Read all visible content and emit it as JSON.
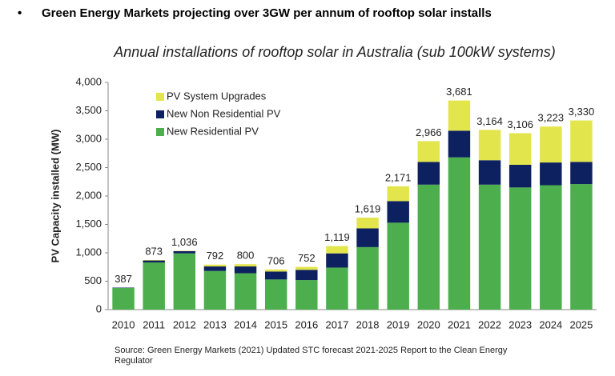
{
  "heading": "Green Energy Markets projecting over 3GW per annum of rooftop solar installs",
  "source": "Source: Green Energy Markets (2021)  Updated STC forecast 2021-2025 Report to the Clean Energy Regulator",
  "chart_data": {
    "type": "stacked_bar",
    "title": "Annual installations of rooftop solar in Australia (sub 100kW systems)",
    "y_label": "PV Capacity installed (MW)",
    "categories": [
      "2010",
      "2011",
      "2012",
      "2013",
      "2014",
      "2015",
      "2016",
      "2017",
      "2018",
      "2019",
      "2020",
      "2021",
      "2022",
      "2023",
      "2024",
      "2025"
    ],
    "series": [
      {
        "name": "New Residential PV",
        "color": "#4cae4c",
        "values": [
          380,
          830,
          990,
          680,
          640,
          530,
          520,
          740,
          1100,
          1530,
          2200,
          2680,
          2200,
          2150,
          2190,
          2210
        ]
      },
      {
        "name": "New Non Residential PV",
        "color": "#0d2160",
        "values": [
          7,
          35,
          40,
          80,
          120,
          140,
          180,
          250,
          330,
          380,
          400,
          470,
          430,
          400,
          400,
          390
        ]
      },
      {
        "name": "PV System Upgrades",
        "color": "#e3e54c",
        "values": [
          0,
          8,
          6,
          32,
          40,
          36,
          52,
          129,
          189,
          261,
          366,
          531,
          534,
          556,
          633,
          730
        ]
      }
    ],
    "totals": [
      387,
      873,
      1036,
      792,
      800,
      706,
      752,
      1119,
      1619,
      2171,
      2966,
      3681,
      3164,
      3106,
      3223,
      3330
    ],
    "total_labels": [
      "387",
      "873",
      "1,036",
      "792",
      "800",
      "706",
      "752",
      "1,119",
      "1,619",
      "2,171",
      "2,966",
      "3,681",
      "3,164",
      "3,106",
      "3,223",
      "3,330"
    ],
    "ylim": [
      0,
      4000
    ],
    "yticks": [
      0,
      500,
      {
        "value": 1000,
        "label": "1,000"
      },
      {
        "value": 1500,
        "label": "1,500"
      },
      {
        "value": 2000,
        "label": "2,000"
      },
      {
        "value": 2500,
        "label": "2,500"
      },
      {
        "value": 3000,
        "label": "3,000"
      },
      {
        "value": 3500,
        "label": "3,500"
      },
      {
        "value": 4000,
        "label": "4,000"
      }
    ],
    "legend": "top-left"
  }
}
